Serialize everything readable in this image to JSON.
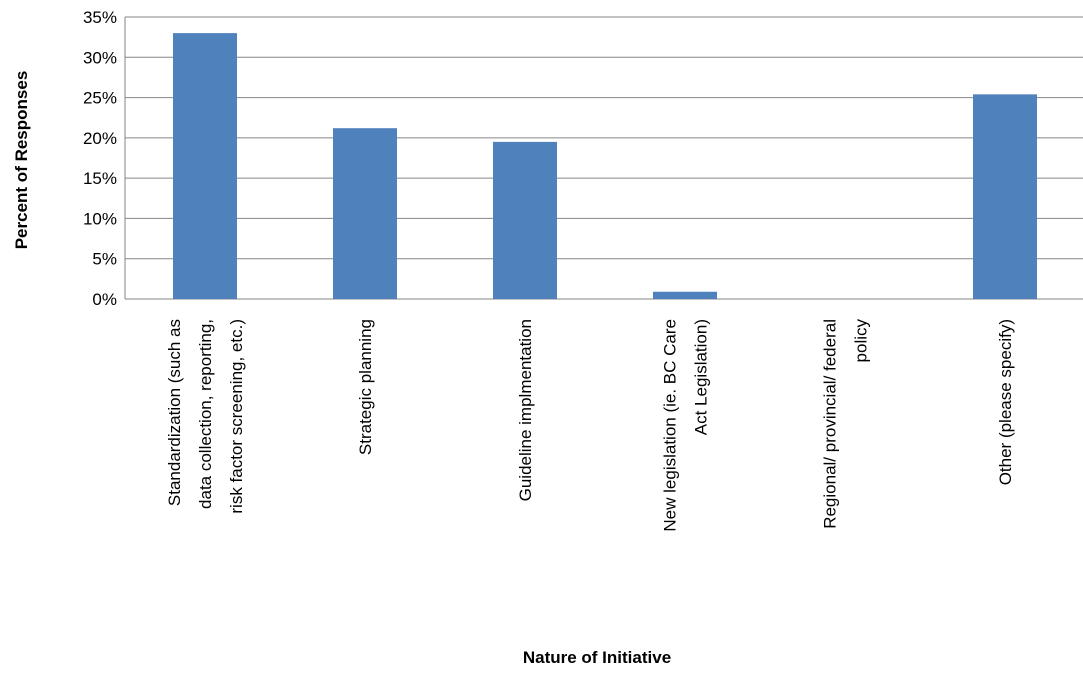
{
  "chart_data": {
    "type": "bar",
    "xlabel": "Nature of Initiative",
    "ylabel": "Percent of Responses",
    "ylim": [
      0,
      35
    ],
    "yticks": [
      "0%",
      "5%",
      "10%",
      "15%",
      "20%",
      "25%",
      "30%",
      "35%"
    ],
    "grid": true,
    "legend": "none",
    "bar_color": "#4F81BD",
    "categories": [
      [
        "Standardization (such as",
        "data collection, reporting,",
        "risk factor screening, etc.)"
      ],
      [
        "Strategic planning"
      ],
      [
        "Guideline implmentation"
      ],
      [
        "New legislation (ie. BC Care",
        "Act Legislation)"
      ],
      [
        "Regional/ provincial/ federal",
        "policy"
      ],
      [
        "Other (please specify)"
      ]
    ],
    "values": [
      33.0,
      21.2,
      19.5,
      0.9,
      0.0,
      25.4
    ]
  }
}
